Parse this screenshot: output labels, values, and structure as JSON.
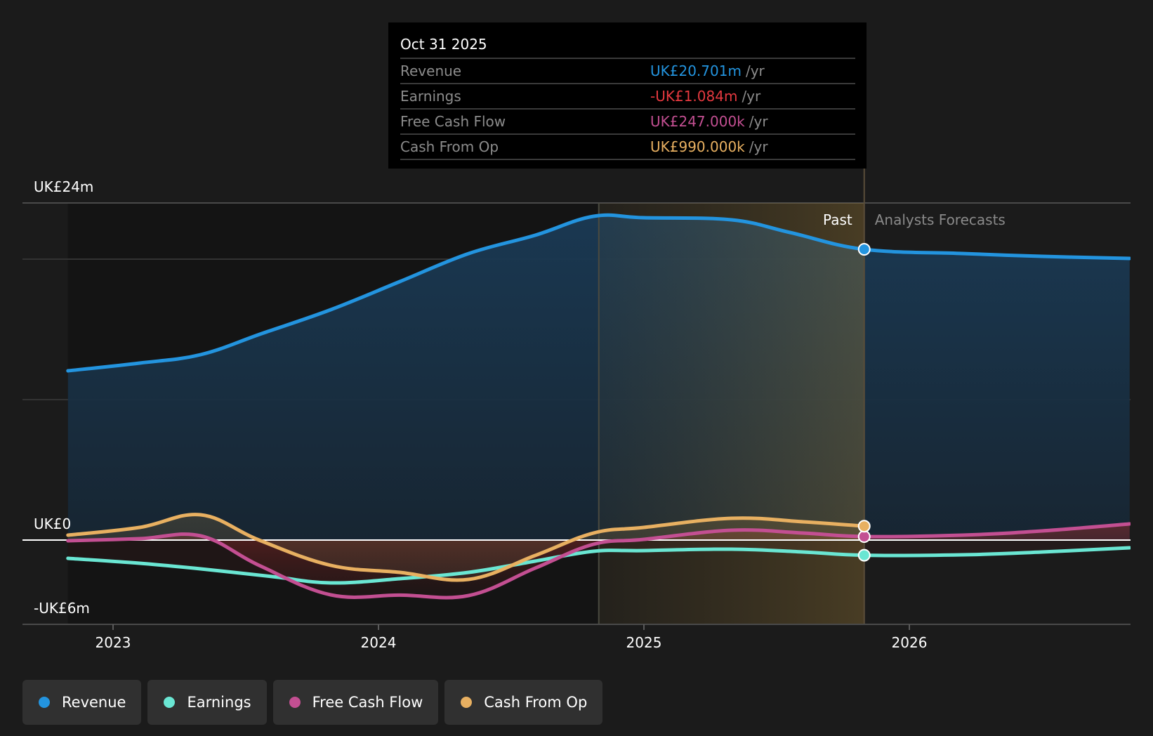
{
  "chart_data": {
    "type": "line",
    "title": "",
    "xlabel": "",
    "ylabel": "",
    "currency_unit": "UK£ m",
    "ylim": [
      -6,
      24
    ],
    "xlim": [
      2022.83,
      2026.83
    ],
    "y_ticks": [
      {
        "value": 24,
        "label": "UK£24m"
      },
      {
        "value": 0,
        "label": "UK£0"
      },
      {
        "value": -6,
        "label": "-UK£6m"
      }
    ],
    "y_gridlines": [
      24,
      20,
      10,
      0,
      -6
    ],
    "x_ticks": [
      {
        "value": 2023,
        "label": "2023"
      },
      {
        "value": 2024,
        "label": "2024"
      },
      {
        "value": 2025,
        "label": "2025"
      },
      {
        "value": 2026,
        "label": "2026"
      }
    ],
    "grid": true,
    "legend_position": "bottom-left",
    "regions": {
      "highlight_start": 2024.83,
      "past_end": 2025.83,
      "past_label": "Past",
      "forecast_label": "Analysts Forecasts"
    },
    "series": [
      {
        "name": "Revenue",
        "color": "#2394df",
        "x": [
          2022.83,
          2023.1,
          2023.33,
          2023.56,
          2023.82,
          2024.08,
          2024.34,
          2024.59,
          2024.81,
          2025.0,
          2025.33,
          2025.55,
          2025.83,
          2026.2,
          2026.5,
          2026.83
        ],
        "values": [
          12.05,
          12.6,
          13.2,
          14.7,
          16.4,
          18.4,
          20.4,
          21.7,
          23.05,
          22.95,
          22.8,
          21.9,
          20.7,
          20.4,
          20.2,
          20.05
        ]
      },
      {
        "name": "Earnings",
        "color": "#6ae6d3",
        "x": [
          2022.83,
          2023.1,
          2023.33,
          2023.6,
          2023.82,
          2024.08,
          2024.34,
          2024.59,
          2024.81,
          2025.0,
          2025.33,
          2025.6,
          2025.83,
          2026.2,
          2026.5,
          2026.83
        ],
        "values": [
          -1.3,
          -1.65,
          -2.05,
          -2.6,
          -3.05,
          -2.75,
          -2.3,
          -1.5,
          -0.8,
          -0.75,
          -0.65,
          -0.85,
          -1.08,
          -1.05,
          -0.85,
          -0.55
        ]
      },
      {
        "name": "Free Cash Flow",
        "color": "#c34f92",
        "x": [
          2022.83,
          2023.1,
          2023.33,
          2023.55,
          2023.82,
          2024.08,
          2024.34,
          2024.59,
          2024.81,
          2025.0,
          2025.33,
          2025.6,
          2025.83,
          2026.2,
          2026.5,
          2026.83
        ],
        "values": [
          -0.05,
          0.1,
          0.3,
          -1.8,
          -3.9,
          -3.92,
          -3.95,
          -2.0,
          -0.3,
          0.05,
          0.7,
          0.5,
          0.25,
          0.35,
          0.65,
          1.15
        ]
      },
      {
        "name": "Cash From Op",
        "color": "#e8b061",
        "x": [
          2022.83,
          2023.1,
          2023.33,
          2023.55,
          2023.82,
          2024.08,
          2024.34,
          2024.59,
          2024.81,
          2025.0,
          2025.33,
          2025.6,
          2025.83
        ],
        "values": [
          0.35,
          0.9,
          1.8,
          0.0,
          -1.8,
          -2.3,
          -2.8,
          -1.1,
          0.5,
          0.9,
          1.55,
          1.3,
          0.99
        ]
      }
    ]
  },
  "tooltip": {
    "date": "Oct 31 2025",
    "unit_suffix": "/yr",
    "rows": [
      {
        "label": "Revenue",
        "value": "UK£20.701m",
        "color": "#2394df"
      },
      {
        "label": "Earnings",
        "value": "-UK£1.084m",
        "color": "#e5393f"
      },
      {
        "label": "Free Cash Flow",
        "value": "UK£247.000k",
        "color": "#c34f92"
      },
      {
        "label": "Cash From Op",
        "value": "UK£990.000k",
        "color": "#e8b061"
      }
    ]
  },
  "legend": [
    {
      "label": "Revenue",
      "color": "#2394df"
    },
    {
      "label": "Earnings",
      "color": "#6ae6d3"
    },
    {
      "label": "Free Cash Flow",
      "color": "#c34f92"
    },
    {
      "label": "Cash From Op",
      "color": "#e8b061"
    }
  ]
}
